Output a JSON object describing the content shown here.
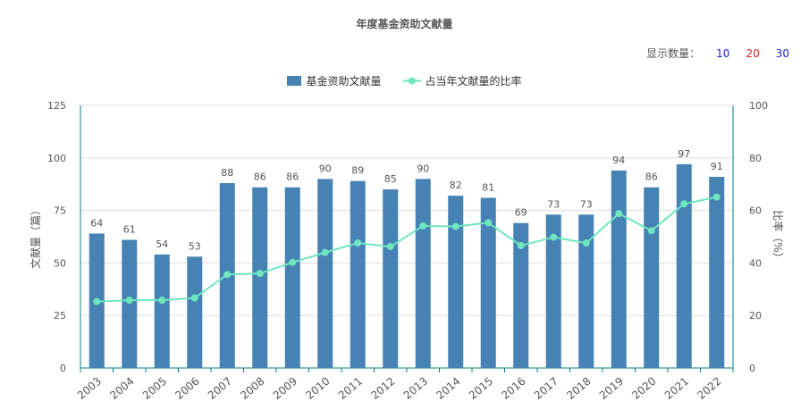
{
  "title": "年度基金资助文献量",
  "display_count": {
    "label": "显示数量：",
    "options": [
      {
        "label": "10",
        "color": "#2222cc"
      },
      {
        "label": "20",
        "color": "#dd2222"
      },
      {
        "label": "30",
        "color": "#2222cc"
      }
    ]
  },
  "colors": {
    "bar": "#4682b4",
    "line": "#6ee6c0",
    "axis": "#008080",
    "grid": "#dddddd",
    "text": "#555555"
  },
  "chart_data": {
    "type": "bar",
    "categories": [
      "2003",
      "2004",
      "2005",
      "2006",
      "2007",
      "2008",
      "2009",
      "2010",
      "2011",
      "2012",
      "2013",
      "2014",
      "2015",
      "2016",
      "2017",
      "2018",
      "2019",
      "2020",
      "2021",
      "2022"
    ],
    "series": [
      {
        "name": "基金资助文献量",
        "type": "bar",
        "axis": "left",
        "values": [
          64,
          61,
          54,
          53,
          88,
          86,
          86,
          90,
          89,
          85,
          90,
          82,
          81,
          69,
          73,
          73,
          94,
          86,
          97,
          91
        ]
      },
      {
        "name": "占当年文献量的比率",
        "type": "line",
        "axis": "right",
        "values": [
          25.3,
          25.8,
          25.8,
          26.7,
          35.6,
          36,
          40.2,
          44,
          47.6,
          46.2,
          54.1,
          53.9,
          55.3,
          46.6,
          49.8,
          47.6,
          58.8,
          52.3,
          62.5,
          65.1
        ]
      }
    ],
    "ylabel_left": "文献量（篇）",
    "ylabel_right": "比率（%）",
    "ylim_left": [
      0,
      125
    ],
    "yticks_left": [
      "0",
      "25",
      "50",
      "75",
      "100",
      "125"
    ],
    "ylim_right": [
      0,
      100
    ],
    "yticks_right": [
      "0",
      "20",
      "40",
      "60",
      "80",
      "100"
    ],
    "grid": true,
    "legend_position": "top-center",
    "data_labels": true
  }
}
